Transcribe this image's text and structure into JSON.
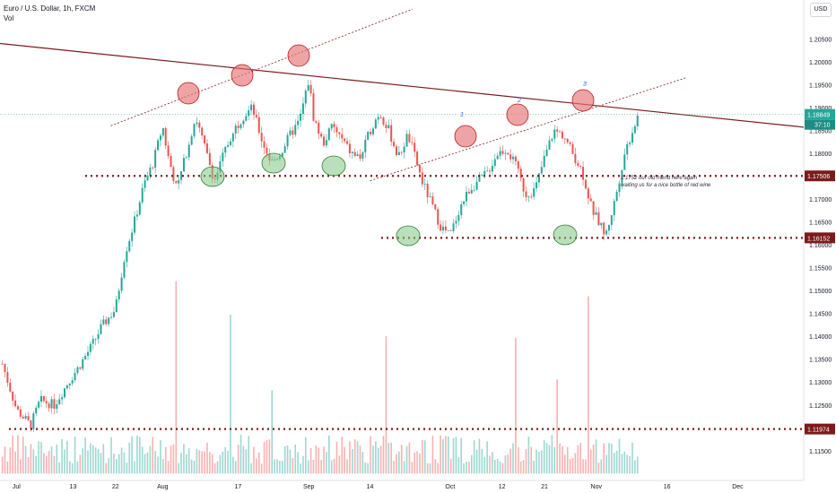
{
  "header": {
    "title": "Euro / U.S. Dollar, 1h, FXCM",
    "volume_label": "Vol"
  },
  "currency_button": "USD",
  "countdown": "37:10",
  "annotation": {
    "line1": "1.1752 our old friend here again",
    "line2": "waiting us for a nice bottle of red wine"
  },
  "wave_labels": [
    "1",
    "2",
    "3"
  ],
  "colors": {
    "up": "#26a69a",
    "down": "#ef5350",
    "level": "#7b1b1b",
    "trend": "#7b1b1b",
    "channel": "#7b1b1b",
    "price_tag": "#26a69a",
    "peak_circle": "#e57373",
    "trough_circle": "#81c784",
    "wave_label": "#2962ff"
  },
  "chart_data": {
    "type": "candlestick",
    "symbol": "Euro / U.S. Dollar",
    "timeframe": "1h",
    "source": "FXCM",
    "ylim": [
      1.1085,
      1.2135
    ],
    "y_ticks": [
      "1.20500",
      "1.20000",
      "1.19500",
      "1.19000",
      "1.18500",
      "1.18000",
      "1.17500",
      "1.17000",
      "1.16500",
      "1.16000",
      "1.15500",
      "1.15000",
      "1.14500",
      "1.14000",
      "1.13500",
      "1.13000",
      "1.12500",
      "1.12000",
      "1.11500"
    ],
    "x_ticks": [
      {
        "label": "Jul",
        "day": 0
      },
      {
        "label": "13",
        "day": 12
      },
      {
        "label": "22",
        "day": 21
      },
      {
        "label": "Aug",
        "day": 31
      },
      {
        "label": "17",
        "day": 47
      },
      {
        "label": "Sep",
        "day": 62
      },
      {
        "label": "14",
        "day": 75
      },
      {
        "label": "Oct",
        "day": 92
      },
      {
        "label": "12",
        "day": 103
      },
      {
        "label": "21",
        "day": 112
      },
      {
        "label": "Nov",
        "day": 123
      },
      {
        "label": "16",
        "day": 138
      },
      {
        "label": "Dec",
        "day": 153
      }
    ],
    "x_range_days": [
      -3.5,
      167
    ],
    "current_price": "1.18849",
    "horizontal_levels": [
      {
        "price": 1.17506,
        "label": "1.17506"
      },
      {
        "price": 1.16152,
        "label": "1.16152"
      },
      {
        "price": 1.11974,
        "label": "1.11974"
      }
    ],
    "price_path": [
      [
        -3,
        1.134
      ],
      [
        0,
        1.124
      ],
      [
        3,
        1.1205
      ],
      [
        5,
        1.126
      ],
      [
        8,
        1.125
      ],
      [
        11,
        1.13
      ],
      [
        13,
        1.133
      ],
      [
        16,
        1.138
      ],
      [
        18,
        1.142
      ],
      [
        21,
        1.146
      ],
      [
        23,
        1.158
      ],
      [
        25,
        1.165
      ],
      [
        27,
        1.173
      ],
      [
        29,
        1.178
      ],
      [
        31,
        1.186
      ],
      [
        32,
        1.18
      ],
      [
        34,
        1.172
      ],
      [
        36,
        1.18
      ],
      [
        38,
        1.188
      ],
      [
        40,
        1.181
      ],
      [
        42,
        1.174
      ],
      [
        44,
        1.18
      ],
      [
        46,
        1.185
      ],
      [
        48,
        1.188
      ],
      [
        50,
        1.19
      ],
      [
        52,
        1.183
      ],
      [
        54,
        1.178
      ],
      [
        56,
        1.18
      ],
      [
        58,
        1.184
      ],
      [
        60,
        1.187
      ],
      [
        62,
        1.196
      ],
      [
        63,
        1.188
      ],
      [
        65,
        1.182
      ],
      [
        67,
        1.186
      ],
      [
        69,
        1.183
      ],
      [
        71,
        1.18
      ],
      [
        73,
        1.179
      ],
      [
        75,
        1.185
      ],
      [
        77,
        1.189
      ],
      [
        79,
        1.185
      ],
      [
        81,
        1.179
      ],
      [
        83,
        1.184
      ],
      [
        84,
        1.181
      ],
      [
        86,
        1.174
      ],
      [
        88,
        1.169
      ],
      [
        90,
        1.164
      ],
      [
        92,
        1.162
      ],
      [
        94,
        1.168
      ],
      [
        96,
        1.172
      ],
      [
        98,
        1.174
      ],
      [
        100,
        1.176
      ],
      [
        102,
        1.18
      ],
      [
        104,
        1.181
      ],
      [
        106,
        1.177
      ],
      [
        108,
        1.171
      ],
      [
        110,
        1.172
      ],
      [
        112,
        1.179
      ],
      [
        114,
        1.185
      ],
      [
        116,
        1.184
      ],
      [
        118,
        1.18
      ],
      [
        120,
        1.176
      ],
      [
        122,
        1.168
      ],
      [
        124,
        1.164
      ],
      [
        125,
        1.162
      ],
      [
        127,
        1.17
      ],
      [
        129,
        1.18
      ],
      [
        131,
        1.186
      ],
      [
        132,
        1.1885
      ]
    ],
    "volume": {
      "base": "1.11000",
      "max": "1.15700"
    }
  }
}
